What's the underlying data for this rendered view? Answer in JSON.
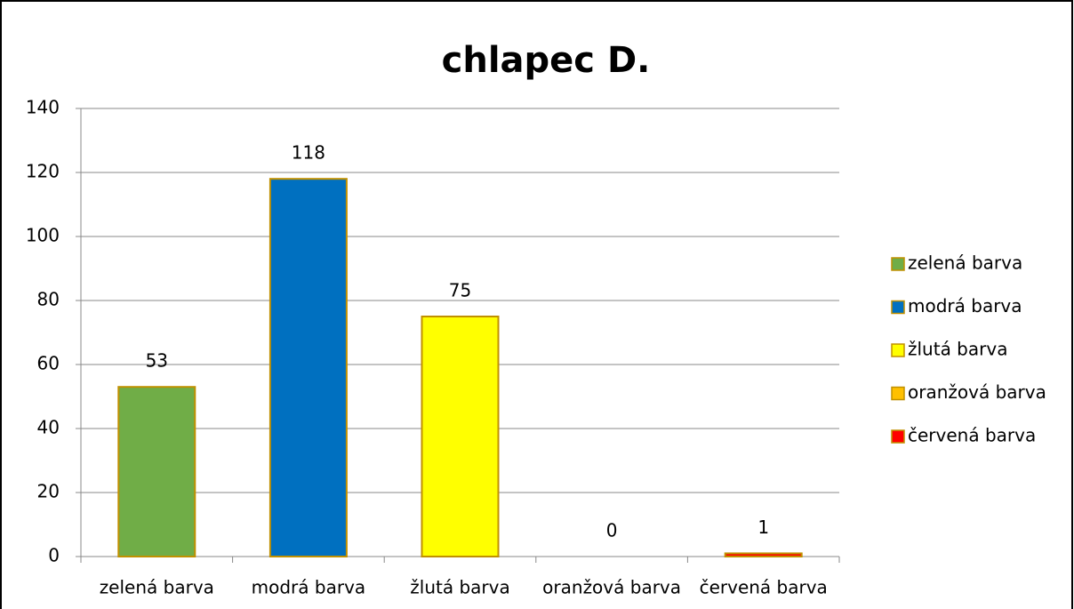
{
  "chart_data": {
    "type": "bar",
    "title": "chlapec D.",
    "categories": [
      "zelená barva",
      "modrá barva",
      "žlutá barva",
      "oranžová barva",
      "červená barva"
    ],
    "values": [
      53,
      118,
      75,
      0,
      1
    ],
    "colors": [
      "#70ad47",
      "#0070c0",
      "#ffff00",
      "#ffc000",
      "#ff0000"
    ],
    "ylim": [
      0,
      140
    ],
    "yticks": [
      0,
      20,
      40,
      60,
      80,
      100,
      120,
      140
    ],
    "grid": true,
    "legend": "right"
  }
}
